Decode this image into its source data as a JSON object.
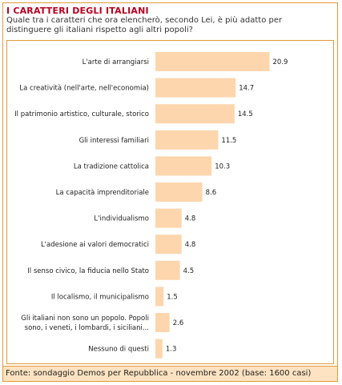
{
  "header": {
    "title": "I CARATTERI DEGLI ITALIANI",
    "subtitle_line1": "Quale tra i caratteri che ora elencherò, secondo Lei, è più adatto per",
    "subtitle_line2": "distinguere gli italiani rispetto agli altri popoli?"
  },
  "footer": {
    "source": "Fonte: sondaggio Demos per Repubblica - novembre 2002 (base: 1600 casi)"
  },
  "colors": {
    "bar": "#fdd6ad",
    "frame": "#e39a3c",
    "title": "#b8001f",
    "footer_bg": "#fde3c1"
  },
  "chart_data": {
    "type": "bar",
    "orientation": "horizontal",
    "grid": false,
    "legend": "none",
    "xlim": [
      0,
      22
    ],
    "categories": [
      [
        "L'arte di arrangiarsi"
      ],
      [
        "La creatività (nell'arte, nell'economia)"
      ],
      [
        "Il patrimonio artistico, culturale, storico"
      ],
      [
        "Gli interessi familiari"
      ],
      [
        "La tradizione cattolica"
      ],
      [
        "La capacità imprenditoriale"
      ],
      [
        "L'individualismo"
      ],
      [
        "L'adesione ai valori democratici"
      ],
      [
        "Il senso civico, la fiducia nello Stato"
      ],
      [
        "Il localismo, il municipalismo"
      ],
      [
        "Gli italiani non sono un popolo. Popoli",
        "sono, i veneti, i lombardi, i siciliani..."
      ],
      [
        "Nessuno di questi"
      ]
    ],
    "values": [
      20.9,
      14.7,
      14.5,
      11.5,
      10.3,
      8.6,
      4.8,
      4.8,
      4.5,
      1.5,
      2.6,
      1.3
    ],
    "value_labels": [
      "20.9",
      "14.7",
      "14.5",
      "11.5",
      "10.3",
      "8.6",
      "4.8",
      "4.8",
      "4.5",
      "1.5",
      "2.6",
      "1.3"
    ]
  }
}
